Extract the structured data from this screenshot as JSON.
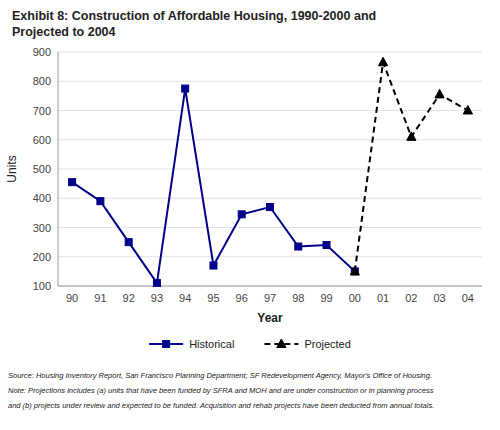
{
  "chart_data": {
    "type": "line",
    "title": "Exhibit 8: Construction of Affordable Housing, 1990-2000 and\nProjected to 2004",
    "x_label": "Year",
    "y_label": "Units",
    "categories": [
      "90",
      "91",
      "92",
      "93",
      "94",
      "95",
      "96",
      "97",
      "98",
      "99",
      "00",
      "01",
      "02",
      "03",
      "04"
    ],
    "series": [
      {
        "name": "Historical",
        "color": "#00008B",
        "marker": "square",
        "line_style": "solid",
        "values": [
          455,
          390,
          250,
          110,
          775,
          170,
          345,
          370,
          235,
          240,
          150,
          null,
          null,
          null,
          null
        ]
      },
      {
        "name": "Projected",
        "color": "#000000",
        "marker": "triangle",
        "line_style": "dashed",
        "values": [
          null,
          null,
          null,
          null,
          null,
          null,
          null,
          null,
          null,
          null,
          150,
          865,
          610,
          755,
          700
        ]
      }
    ],
    "ylim": [
      100,
      900
    ],
    "yticks": [
      100,
      200,
      300,
      400,
      500,
      600,
      700,
      800,
      900
    ],
    "grid": true,
    "legend": "bottom",
    "annotations": [
      "Source: Housing Inventory Report, San Francisco Planning Department; SF Redevelopment Agency, Mayor's Office of Housing.",
      "Note: Projections includes (a) units that have been funded by SFRA and MOH and are under construction or in planning process",
      "and (b) projects under review and expected to be funded. Acquisition and rehab projects have been deducted from annual totals."
    ]
  }
}
